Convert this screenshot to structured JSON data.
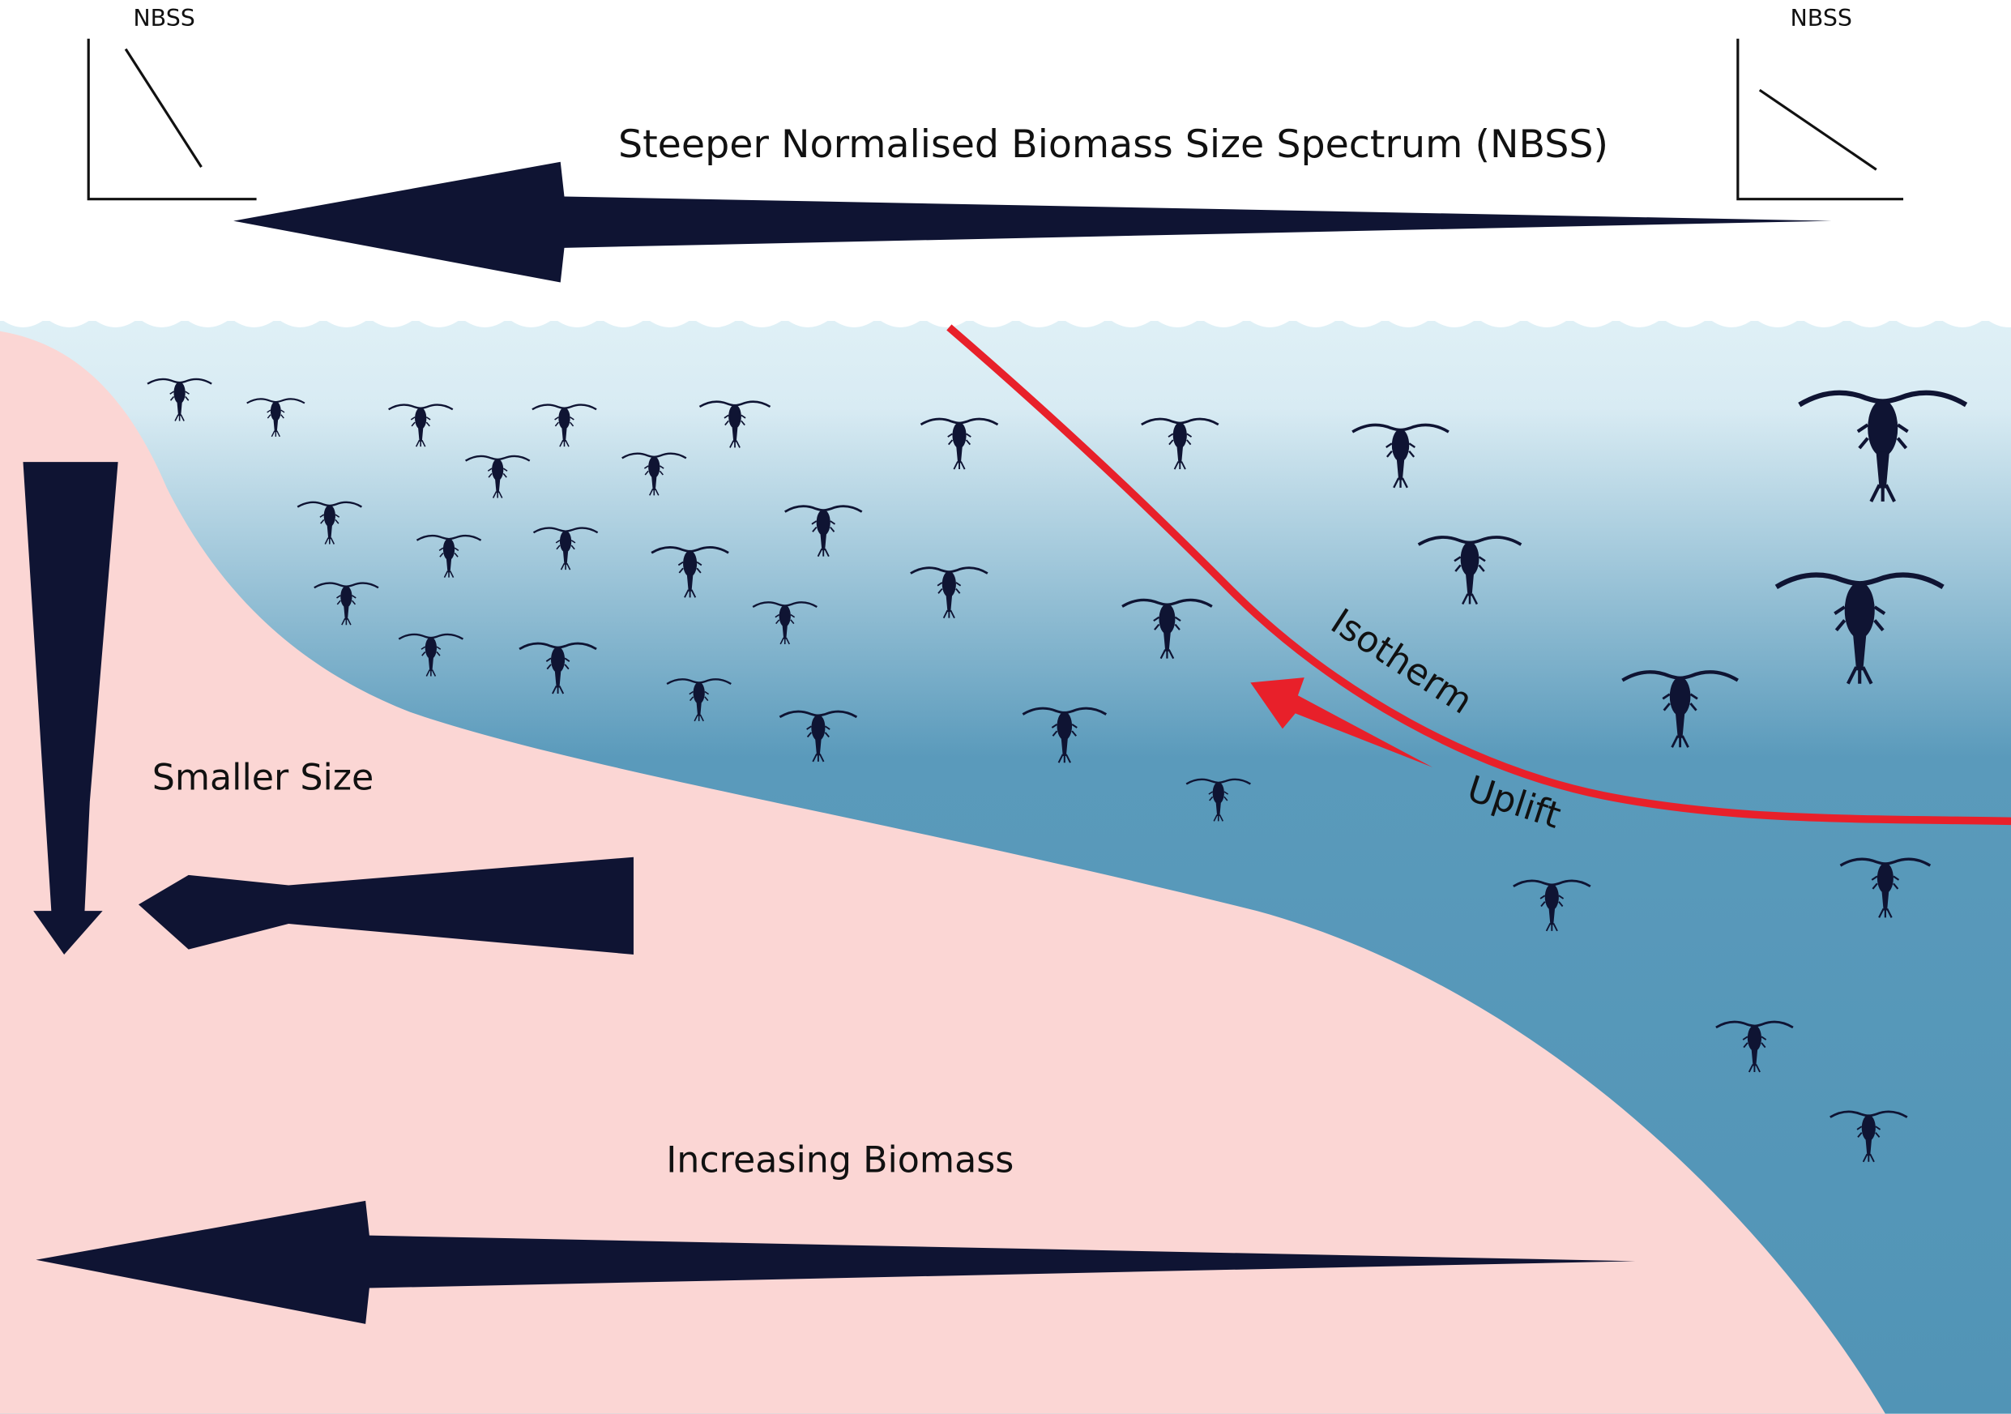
{
  "nbss_left": {
    "label": "NBSS"
  },
  "nbss_right": {
    "label": "NBSS"
  },
  "top_arrow": {
    "label": "Steeper Normalised Biomass Size Spectrum (NBSS)"
  },
  "size_arrow": {
    "label": "Smaller Size"
  },
  "biomass_arrow": {
    "label": "Increasing Biomass"
  },
  "isotherm": {
    "label": "Isotherm"
  },
  "uplift": {
    "label": "Uplift"
  }
}
